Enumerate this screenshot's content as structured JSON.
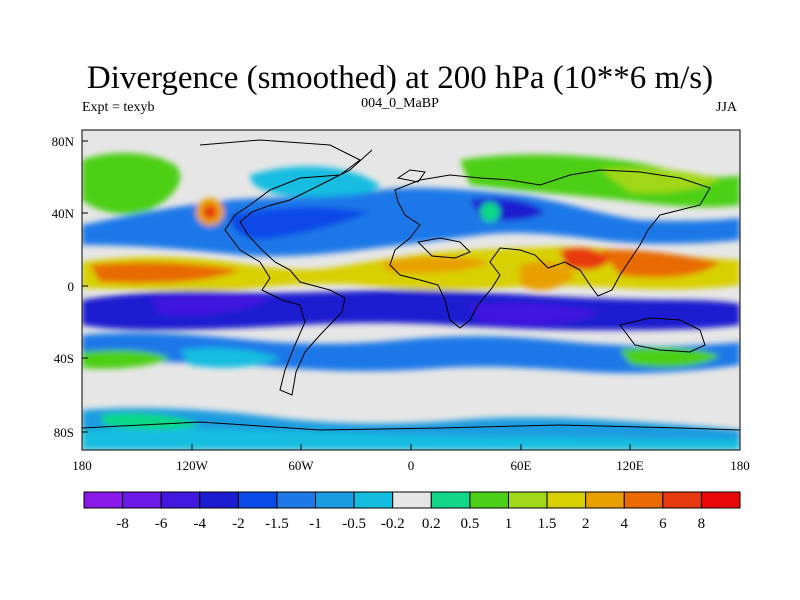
{
  "title": "Divergence (smoothed) at 200 hPa (10**6 m/s)",
  "left_label": "Expt = texyb",
  "center_label": "004_0_MaBP",
  "right_label": "JJA",
  "x_ticks": [
    "180",
    "120W",
    "60W",
    "0",
    "60E",
    "120E",
    "180"
  ],
  "y_ticks": [
    "80N",
    "40N",
    "0",
    "40S",
    "80S"
  ],
  "colorbar": {
    "labels": [
      "-8",
      "-6",
      "-4",
      "-2",
      "-1.5",
      "-1",
      "-0.5",
      "-0.2",
      "0.2",
      "0.5",
      "1",
      "1.5",
      "2",
      "4",
      "6",
      "8"
    ],
    "colors": [
      "#8a18e8",
      "#6c18e8",
      "#4018e0",
      "#1c1cd0",
      "#0a4ae8",
      "#1f78e8",
      "#1a9ce0",
      "#12bde0",
      "#e6e6e6",
      "#10d888",
      "#4dcf18",
      "#a0d818",
      "#d8d000",
      "#e8a000",
      "#e86a00",
      "#e83a10",
      "#e80808"
    ]
  },
  "colors": {
    "background_field": "#e6e6e6",
    "coastline": "#000000"
  }
}
